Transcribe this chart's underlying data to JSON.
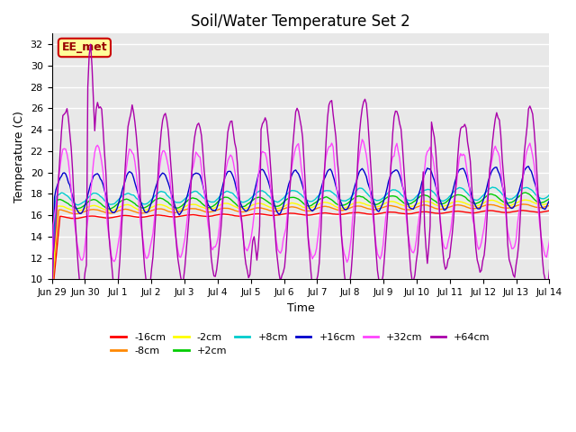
{
  "title": "Soil/Water Temperature Set 2",
  "xlabel": "Time",
  "ylabel": "Temperature (C)",
  "ylim": [
    10,
    33
  ],
  "yticks": [
    10,
    12,
    14,
    16,
    18,
    20,
    22,
    24,
    26,
    28,
    30,
    32
  ],
  "bg_color": "#e8e8e8",
  "grid_color": "white",
  "annotation_text": "EE_met",
  "annotation_bg": "#ffff99",
  "annotation_border": "#cc0000",
  "series_colors": {
    "-16cm": "#ff0000",
    "-8cm": "#ff8800",
    "-2cm": "#ffff00",
    "+2cm": "#00cc00",
    "+8cm": "#00cccc",
    "+16cm": "#0000cc",
    "+32cm": "#ff44ff",
    "+64cm": "#aa00aa"
  },
  "x_tick_labels": [
    "Jun 29",
    "Jun 30",
    "Jul 1",
    "Jul 2",
    "Jul 3",
    "Jul 4",
    "Jul 5",
    "Jul 6",
    "Jul 7",
    "Jul 8",
    "Jul 9",
    "Jul 10",
    "Jul 11",
    "Jul 12",
    "Jul 13",
    "Jul 14"
  ],
  "n_days": 16,
  "points_per_day": 24
}
